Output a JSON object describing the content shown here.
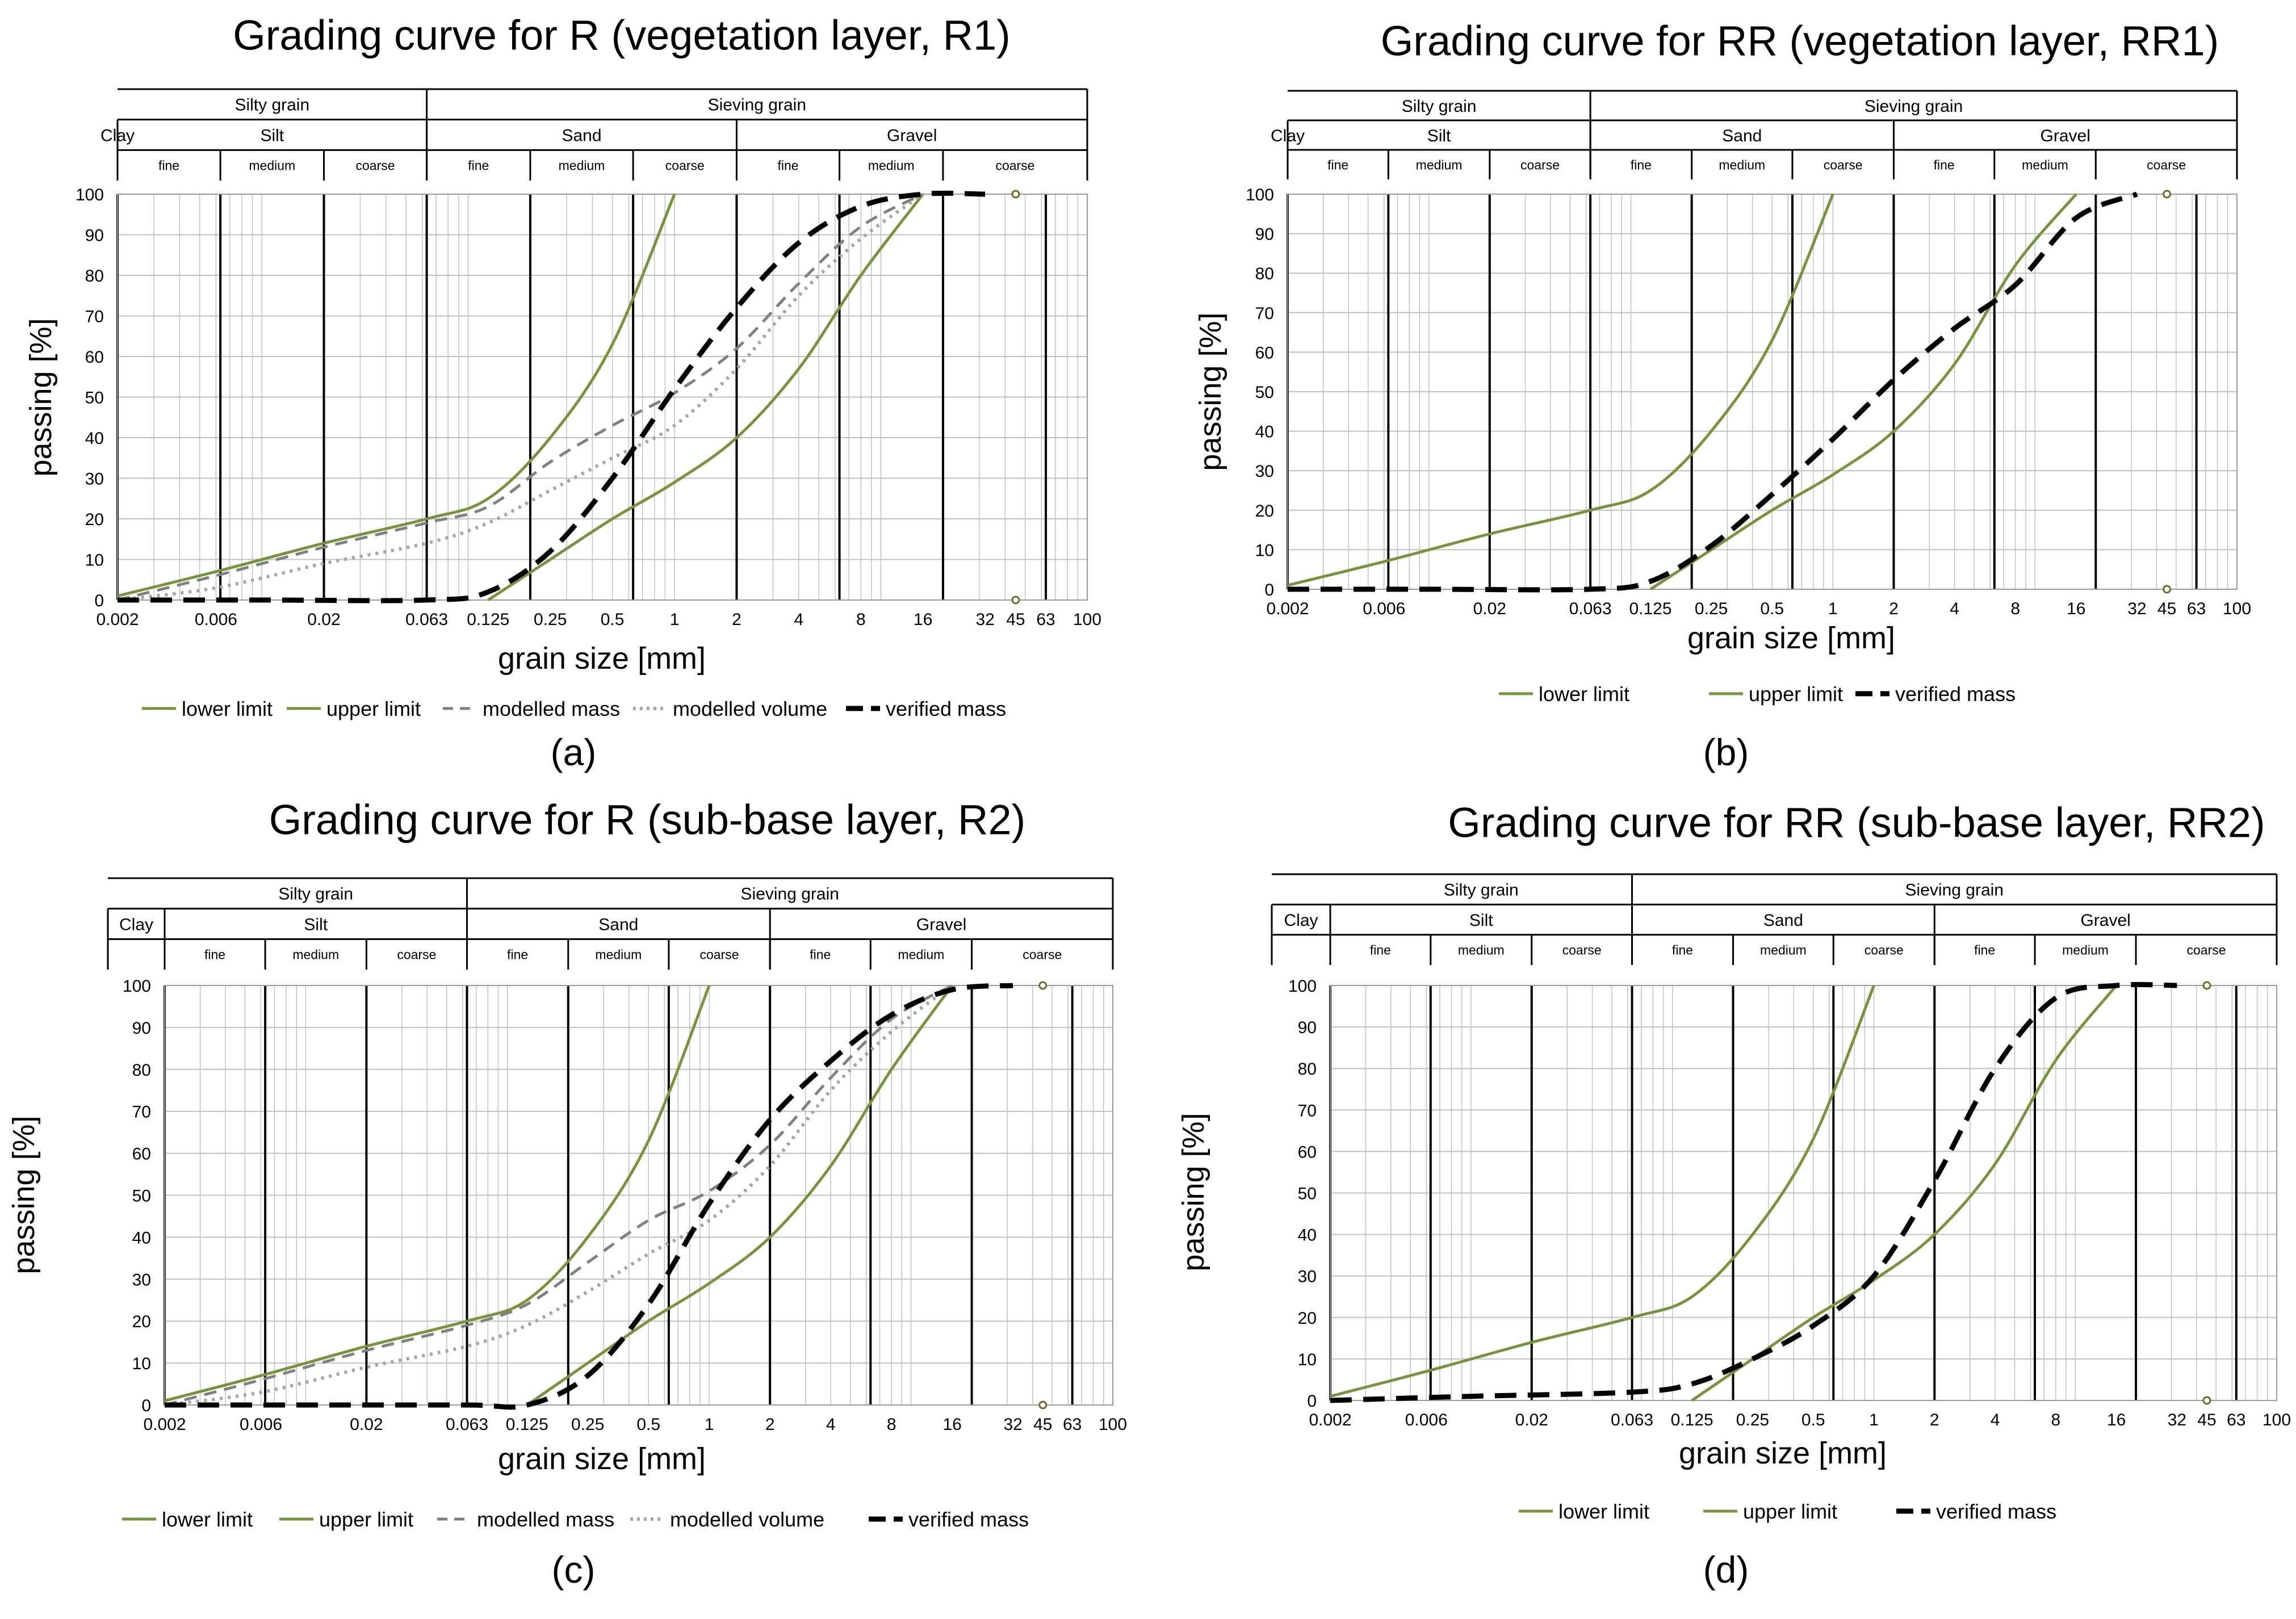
{
  "figure": {
    "panel_letters": [
      "(a)",
      "(b)",
      "(c)",
      "(d)"
    ],
    "colors": {
      "limit": "#77933c",
      "modelled_mass": "#808080",
      "modelled_volume": "#a6a6a6",
      "verified_mass": "#000000",
      "grid_major": "#000000",
      "grid_minor": "#c0c0c0"
    },
    "classification": {
      "row1": [
        {
          "label": "Silty grain",
          "from": 0.002,
          "to": 0.063
        },
        {
          "label": "Sieving grain",
          "from": 0.063,
          "to": 100
        }
      ],
      "row2": [
        {
          "label": "Clay",
          "from": null,
          "to": 0.002
        },
        {
          "label": "Silt",
          "from": 0.002,
          "to": 0.063
        },
        {
          "label": "Sand",
          "from": 0.063,
          "to": 2
        },
        {
          "label": "Gravel",
          "from": 2,
          "to": 100
        }
      ],
      "row3": [
        {
          "label": "fine",
          "from": 0.002,
          "to": 0.0063
        },
        {
          "label": "medium",
          "from": 0.0063,
          "to": 0.02
        },
        {
          "label": "coarse",
          "from": 0.02,
          "to": 0.063
        },
        {
          "label": "fine",
          "from": 0.063,
          "to": 0.2
        },
        {
          "label": "medium",
          "from": 0.2,
          "to": 0.63
        },
        {
          "label": "coarse",
          "from": 0.63,
          "to": 2
        },
        {
          "label": "fine",
          "from": 2,
          "to": 6.3
        },
        {
          "label": "medium",
          "from": 6.3,
          "to": 20
        },
        {
          "label": "coarse",
          "from": 20,
          "to": 100
        }
      ]
    },
    "major_grid_lines": [
      0.002,
      0.0063,
      0.02,
      0.063,
      0.2,
      0.63,
      2,
      6.3,
      20,
      63
    ],
    "x_tick_values": [
      0.002,
      0.006,
      0.02,
      0.063,
      0.125,
      0.25,
      0.5,
      1,
      2,
      4,
      8,
      16,
      32,
      45,
      63,
      100
    ],
    "x_tick_labels": [
      "0.002",
      "0.006",
      "0.02",
      "0.063",
      "0.125",
      "0.25",
      "0.5",
      "1",
      "2",
      "4",
      "8",
      "16",
      "32",
      "45",
      "63",
      "100"
    ],
    "y_tick_labels": [
      "0",
      "10",
      "20",
      "30",
      "40",
      "50",
      "60",
      "70",
      "80",
      "90",
      "100"
    ]
  },
  "chart_data": [
    {
      "type": "line",
      "title": "Grading curve for R (vegetation layer, R1)",
      "xlabel": "grain size [mm]",
      "ylabel": "passing [%]",
      "xscale": "log",
      "xlim": [
        0.002,
        100
      ],
      "ylim": [
        0,
        100
      ],
      "grid": true,
      "legend_position": "bottom",
      "series": [
        {
          "name": "lower limit",
          "style": "solid-green",
          "points": [
            [
              0.125,
              0
            ],
            [
              0.25,
              10
            ],
            [
              0.5,
              20
            ],
            [
              1,
              29
            ],
            [
              2,
              40
            ],
            [
              4,
              57
            ],
            [
              8,
              80
            ],
            [
              16,
              100
            ]
          ]
        },
        {
          "name": "upper limit",
          "style": "solid-green",
          "points": [
            [
              0.002,
              1
            ],
            [
              0.006,
              7
            ],
            [
              0.02,
              14
            ],
            [
              0.063,
              20
            ],
            [
              0.125,
              25
            ],
            [
              0.25,
              40
            ],
            [
              0.5,
              63
            ],
            [
              1,
              100
            ]
          ]
        },
        {
          "name": "modelled mass",
          "style": "dashed-grey",
          "points": [
            [
              0.002,
              0
            ],
            [
              0.006,
              6
            ],
            [
              0.02,
              13
            ],
            [
              0.063,
              19
            ],
            [
              0.125,
              23
            ],
            [
              0.25,
              34
            ],
            [
              0.5,
              43
            ],
            [
              1,
              51
            ],
            [
              2,
              62
            ],
            [
              4,
              78
            ],
            [
              8,
              92
            ],
            [
              16,
              100
            ]
          ]
        },
        {
          "name": "modelled volume",
          "style": "dotted-grey",
          "points": [
            [
              0.002,
              0
            ],
            [
              0.006,
              3
            ],
            [
              0.02,
              9
            ],
            [
              0.063,
              14
            ],
            [
              0.125,
              19
            ],
            [
              0.25,
              27
            ],
            [
              0.5,
              35
            ],
            [
              1,
              43
            ],
            [
              2,
              57
            ],
            [
              4,
              75
            ],
            [
              8,
              89
            ],
            [
              16,
              100
            ]
          ]
        },
        {
          "name": "verified mass",
          "style": "dashed-black",
          "points": [
            [
              0.002,
              0
            ],
            [
              0.01,
              0
            ],
            [
              0.063,
              0
            ],
            [
              0.125,
              2
            ],
            [
              0.25,
              12
            ],
            [
              0.5,
              30
            ],
            [
              1,
              52
            ],
            [
              2,
              72
            ],
            [
              4,
              88
            ],
            [
              8,
              97
            ],
            [
              16,
              100
            ],
            [
              32,
              100
            ]
          ]
        }
      ]
    },
    {
      "type": "line",
      "title": "Grading curve for RR (vegetation layer, RR1)",
      "xlabel": "grain size [mm]",
      "ylabel": "passing [%]",
      "xscale": "log",
      "xlim": [
        0.002,
        100
      ],
      "ylim": [
        0,
        100
      ],
      "grid": true,
      "legend_position": "bottom",
      "series": [
        {
          "name": "lower limit",
          "style": "solid-green",
          "points": [
            [
              0.125,
              0
            ],
            [
              0.25,
              10
            ],
            [
              0.5,
              20
            ],
            [
              1,
              29
            ],
            [
              2,
              40
            ],
            [
              4,
              57
            ],
            [
              8,
              82
            ],
            [
              16,
              100
            ]
          ]
        },
        {
          "name": "upper limit",
          "style": "solid-green",
          "points": [
            [
              0.002,
              1
            ],
            [
              0.006,
              7
            ],
            [
              0.02,
              14
            ],
            [
              0.063,
              20
            ],
            [
              0.125,
              25
            ],
            [
              0.25,
              40
            ],
            [
              0.5,
              63
            ],
            [
              1,
              100
            ]
          ]
        },
        {
          "name": "verified mass",
          "style": "dashed-black",
          "points": [
            [
              0.002,
              0
            ],
            [
              0.01,
              0
            ],
            [
              0.063,
              0
            ],
            [
              0.125,
              2
            ],
            [
              0.25,
              11
            ],
            [
              0.5,
              24
            ],
            [
              1,
              38
            ],
            [
              2,
              53
            ],
            [
              4,
              66
            ],
            [
              8,
              77
            ],
            [
              16,
              94
            ],
            [
              32,
              100
            ]
          ]
        }
      ]
    },
    {
      "type": "line",
      "title": "Grading curve for R (sub-base layer, R2)",
      "xlabel": "grain size [mm]",
      "ylabel": "passing [%]",
      "xscale": "log",
      "xlim": [
        0.002,
        100
      ],
      "ylim": [
        0,
        100
      ],
      "grid": true,
      "legend_position": "bottom",
      "series": [
        {
          "name": "lower limit",
          "style": "solid-green",
          "points": [
            [
              0.125,
              0
            ],
            [
              0.25,
              10
            ],
            [
              0.5,
              20
            ],
            [
              1,
              29
            ],
            [
              2,
              40
            ],
            [
              4,
              57
            ],
            [
              8,
              80
            ],
            [
              16,
              100
            ]
          ]
        },
        {
          "name": "upper limit",
          "style": "solid-green",
          "points": [
            [
              0.002,
              1
            ],
            [
              0.006,
              7
            ],
            [
              0.02,
              14
            ],
            [
              0.063,
              20
            ],
            [
              0.125,
              25
            ],
            [
              0.25,
              40
            ],
            [
              0.5,
              63
            ],
            [
              1,
              100
            ]
          ]
        },
        {
          "name": "modelled mass",
          "style": "dashed-grey",
          "points": [
            [
              0.002,
              0
            ],
            [
              0.006,
              6
            ],
            [
              0.02,
              13
            ],
            [
              0.063,
              19
            ],
            [
              0.125,
              24
            ],
            [
              0.25,
              34
            ],
            [
              0.5,
              44
            ],
            [
              1,
              51
            ],
            [
              2,
              62
            ],
            [
              4,
              78
            ],
            [
              8,
              92
            ],
            [
              16,
              100
            ]
          ]
        },
        {
          "name": "modelled volume",
          "style": "dotted-grey",
          "points": [
            [
              0.002,
              0
            ],
            [
              0.006,
              3
            ],
            [
              0.02,
              9
            ],
            [
              0.063,
              14
            ],
            [
              0.125,
              19
            ],
            [
              0.25,
              27
            ],
            [
              0.5,
              36
            ],
            [
              1,
              44
            ],
            [
              2,
              57
            ],
            [
              4,
              75
            ],
            [
              8,
              89
            ],
            [
              16,
              100
            ]
          ]
        },
        {
          "name": "verified mass",
          "style": "dashed-black",
          "points": [
            [
              0.002,
              0
            ],
            [
              0.01,
              0
            ],
            [
              0.063,
              0
            ],
            [
              0.125,
              0
            ],
            [
              0.25,
              7
            ],
            [
              0.5,
              24
            ],
            [
              1,
              48
            ],
            [
              2,
              68
            ],
            [
              4,
              82
            ],
            [
              8,
              93
            ],
            [
              16,
              99
            ],
            [
              32,
              100
            ]
          ]
        }
      ]
    },
    {
      "type": "line",
      "title": "Grading curve for RR (sub-base layer, RR2)",
      "xlabel": "grain size [mm]",
      "ylabel": "passing [%]",
      "xscale": "log",
      "xlim": [
        0.002,
        100
      ],
      "ylim": [
        0,
        100
      ],
      "grid": true,
      "legend_position": "bottom",
      "series": [
        {
          "name": "lower limit",
          "style": "solid-green",
          "points": [
            [
              0.125,
              0
            ],
            [
              0.25,
              10
            ],
            [
              0.5,
              20
            ],
            [
              1,
              29
            ],
            [
              2,
              40
            ],
            [
              4,
              57
            ],
            [
              8,
              82
            ],
            [
              16,
              100
            ]
          ]
        },
        {
          "name": "upper limit",
          "style": "solid-green",
          "points": [
            [
              0.002,
              1
            ],
            [
              0.006,
              7
            ],
            [
              0.02,
              14
            ],
            [
              0.063,
              20
            ],
            [
              0.125,
              25
            ],
            [
              0.25,
              40
            ],
            [
              0.5,
              63
            ],
            [
              1,
              100
            ]
          ]
        },
        {
          "name": "verified mass",
          "style": "dashed-black",
          "points": [
            [
              0.002,
              0
            ],
            [
              0.01,
              1
            ],
            [
              0.063,
              2
            ],
            [
              0.125,
              4
            ],
            [
              0.25,
              10
            ],
            [
              0.5,
              18
            ],
            [
              1,
              30
            ],
            [
              2,
              53
            ],
            [
              4,
              80
            ],
            [
              8,
              97
            ],
            [
              16,
              100
            ],
            [
              32,
              100
            ]
          ]
        }
      ]
    }
  ]
}
